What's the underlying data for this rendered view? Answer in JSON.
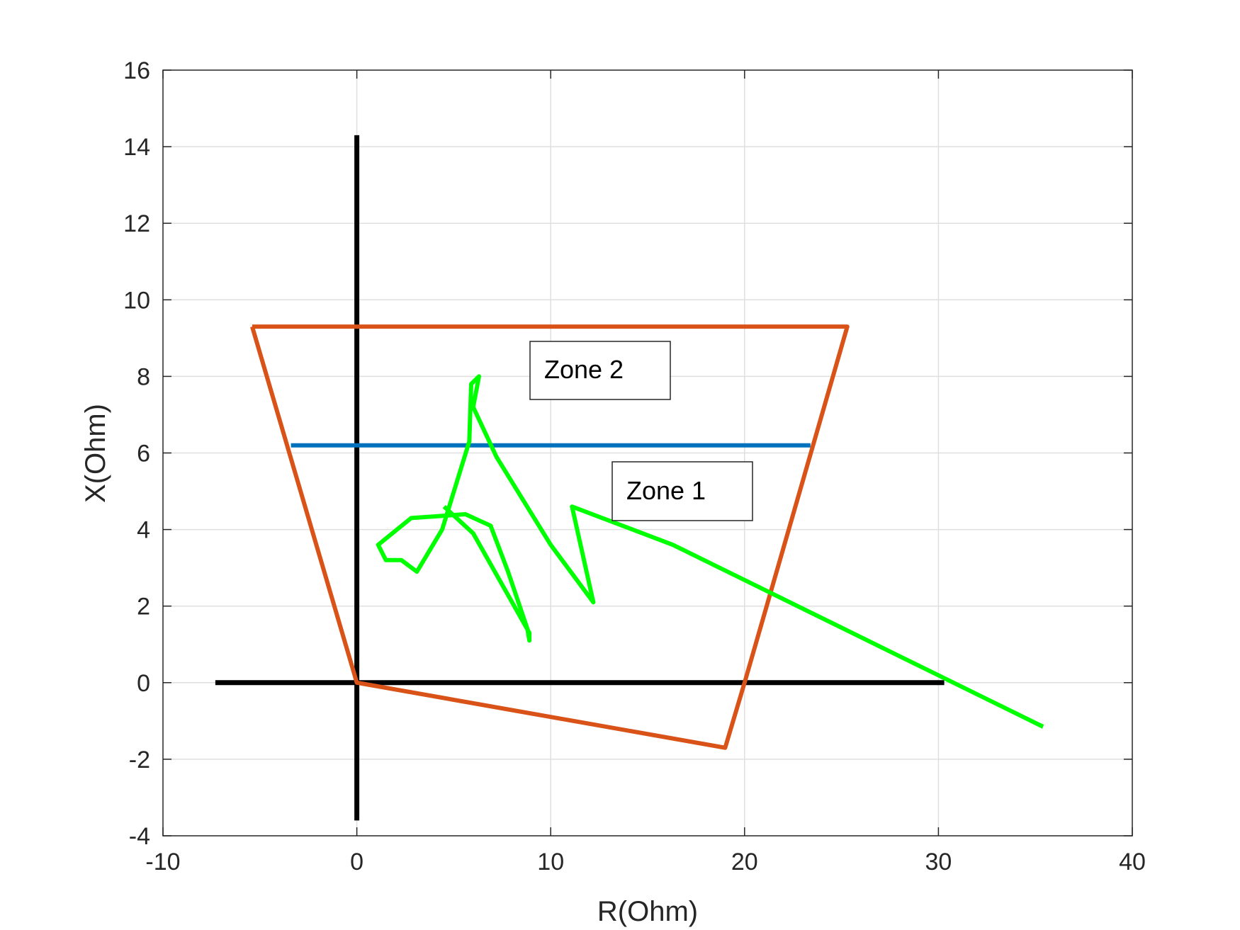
{
  "chart_data": {
    "type": "line",
    "title": "",
    "xlabel": "R(Ohm)",
    "ylabel": "X(Ohm)",
    "xlim": [
      -10,
      40
    ],
    "ylim": [
      -4,
      16
    ],
    "xticks": [
      -10,
      0,
      10,
      20,
      30,
      40
    ],
    "yticks": [
      -4,
      -2,
      0,
      2,
      4,
      6,
      8,
      10,
      12,
      14,
      16
    ],
    "grid": true,
    "series": [
      {
        "color": "#000000",
        "points": [
          [
            -7.3,
            0
          ],
          [
            30.3,
            0
          ]
        ]
      },
      {
        "color": "#000000",
        "points": [
          [
            0,
            14.3
          ],
          [
            0,
            -3.6
          ]
        ]
      },
      {
        "color": "#D95319",
        "points": [
          [
            -5.4,
            9.3
          ],
          [
            25.3,
            9.3
          ],
          [
            20.0,
            0
          ],
          [
            19.0,
            -1.7
          ],
          [
            0,
            0
          ],
          [
            -5.4,
            9.3
          ]
        ]
      },
      {
        "color": "#0072BD",
        "points": [
          [
            -3.4,
            6.2
          ],
          [
            23.4,
            6.2
          ]
        ]
      },
      {
        "color": "#00FF00",
        "points": [
          [
            35.4,
            -1.15
          ],
          [
            16.3,
            3.6
          ],
          [
            11.1,
            4.6
          ],
          [
            12.2,
            2.1
          ],
          [
            10.0,
            3.6
          ],
          [
            7.2,
            5.9
          ],
          [
            6.0,
            7.2
          ],
          [
            6.3,
            8.0
          ],
          [
            5.9,
            7.8
          ],
          [
            5.8,
            6.3
          ],
          [
            4.4,
            4.0
          ],
          [
            3.1,
            2.9
          ],
          [
            2.3,
            3.2
          ],
          [
            1.5,
            3.2
          ],
          [
            1.1,
            3.6
          ],
          [
            2.8,
            4.3
          ],
          [
            5.6,
            4.4
          ],
          [
            6.9,
            4.1
          ],
          [
            7.8,
            2.9
          ],
          [
            8.8,
            1.4
          ],
          [
            8.9,
            1.1
          ],
          [
            8.9,
            1.3
          ],
          [
            6.0,
            3.9
          ],
          [
            4.5,
            4.6
          ]
        ]
      }
    ],
    "annotations": [
      {
        "text": "Zone 2"
      },
      {
        "text": "Zone 1"
      }
    ]
  }
}
